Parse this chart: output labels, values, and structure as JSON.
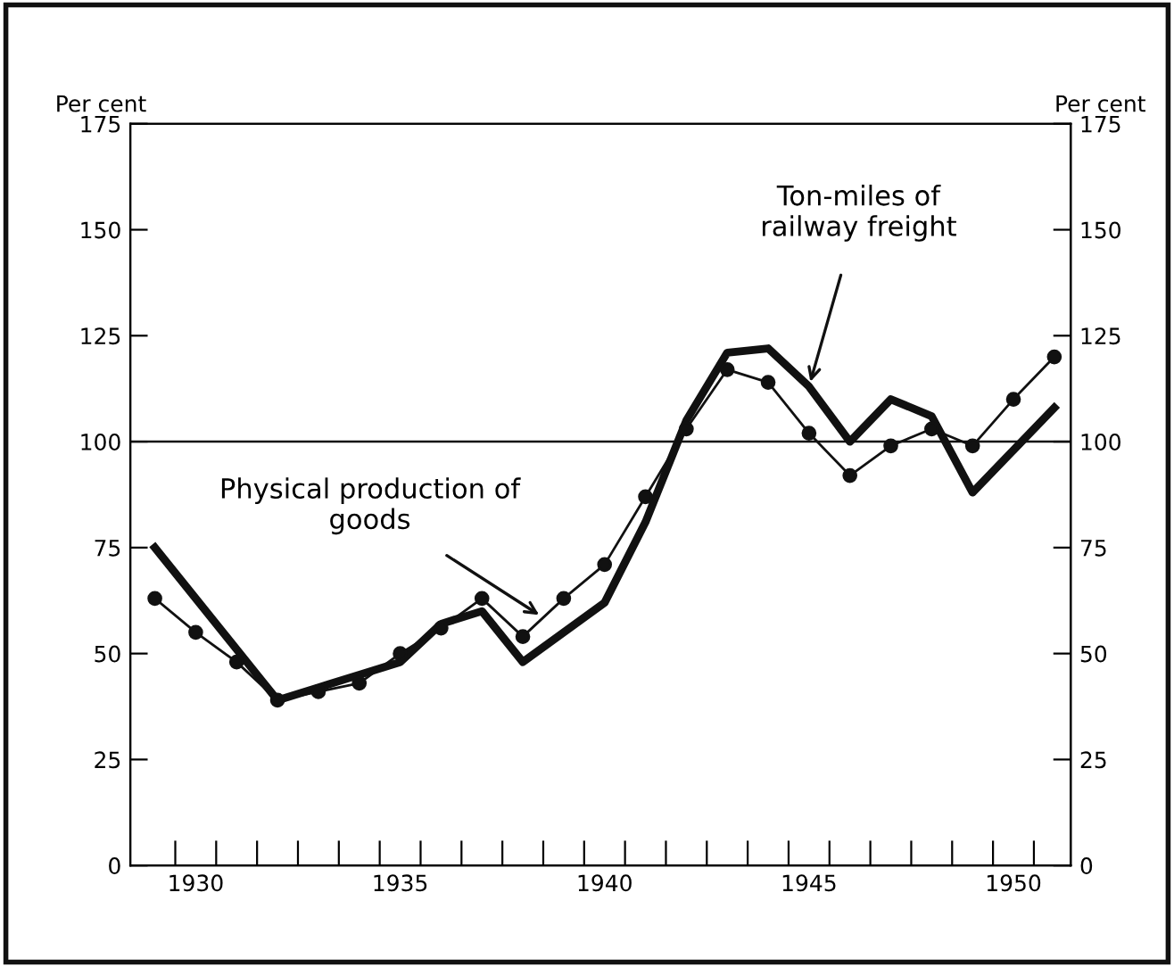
{
  "chart_data": {
    "type": "line",
    "ylabel": "Per cent",
    "y2label": "Per cent",
    "series": [
      {
        "name": "Physical production of goods",
        "color": "#111111",
        "marker": "circle",
        "x": [
          1929,
          1930,
          1931,
          1932,
          1933,
          1934,
          1935,
          1936,
          1937,
          1938,
          1939,
          1940,
          1941,
          1942,
          1943,
          1944,
          1945,
          1946,
          1947,
          1948,
          1949,
          1950,
          1951
        ],
        "values": [
          63,
          55,
          48,
          39,
          41,
          43,
          50,
          56,
          63,
          54,
          63,
          71,
          87,
          103,
          117,
          114,
          102,
          92,
          99,
          103,
          99,
          110,
          120
        ]
      },
      {
        "name": "Ton-miles of railway freight",
        "color": "#111111",
        "marker": "none",
        "x": [
          1929,
          1932,
          1933,
          1934,
          1935,
          1936,
          1937,
          1938,
          1939,
          1940,
          1941,
          1942,
          1943,
          1944,
          1945,
          1946,
          1947,
          1948,
          1949,
          1950,
          1951
        ],
        "values": [
          75,
          39,
          42,
          45,
          48,
          57,
          60,
          48,
          55,
          62,
          81,
          105,
          121,
          122,
          113,
          100,
          110,
          106,
          88,
          98,
          108
        ]
      }
    ],
    "ref_lines": [
      {
        "axis": "y",
        "value": 100,
        "label": null,
        "color": "#111111"
      }
    ],
    "xlim": [
      1928.4,
      1951.4
    ],
    "xticks": [
      {
        "value": 1929.5,
        "label": null
      },
      1930,
      {
        "value": 1930.5,
        "label": null
      },
      {
        "value": 1931.5,
        "label": null
      },
      {
        "value": 1932.5,
        "label": null
      },
      {
        "value": 1933.5,
        "label": null
      },
      {
        "value": 1934.5,
        "label": null
      },
      1935,
      {
        "value": 1935.5,
        "label": null
      },
      {
        "value": 1936.5,
        "label": null
      },
      {
        "value": 1937.5,
        "label": null
      },
      {
        "value": 1938.5,
        "label": null
      },
      {
        "value": 1939.5,
        "label": null
      },
      1940,
      {
        "value": 1940.5,
        "label": null
      },
      {
        "value": 1941.5,
        "label": null
      },
      {
        "value": 1942.5,
        "label": null
      },
      {
        "value": 1943.5,
        "label": null
      },
      {
        "value": 1944.5,
        "label": null
      },
      1945,
      {
        "value": 1945.5,
        "label": null
      },
      {
        "value": 1946.5,
        "label": null
      },
      {
        "value": 1947.5,
        "label": null
      },
      {
        "value": 1948.5,
        "label": null
      },
      {
        "value": 1949.5,
        "label": null
      },
      1950,
      {
        "value": 1950.5,
        "label": null
      }
    ],
    "ylim": [
      0,
      175
    ],
    "yticks": [
      0,
      25,
      50,
      75,
      100,
      125,
      150,
      175
    ],
    "y2lim": [
      0,
      175
    ],
    "y2ticks": [
      0,
      25,
      50,
      75,
      100,
      125,
      150,
      175
    ],
    "grid": false,
    "legend": false,
    "line_style": "solid"
  }
}
